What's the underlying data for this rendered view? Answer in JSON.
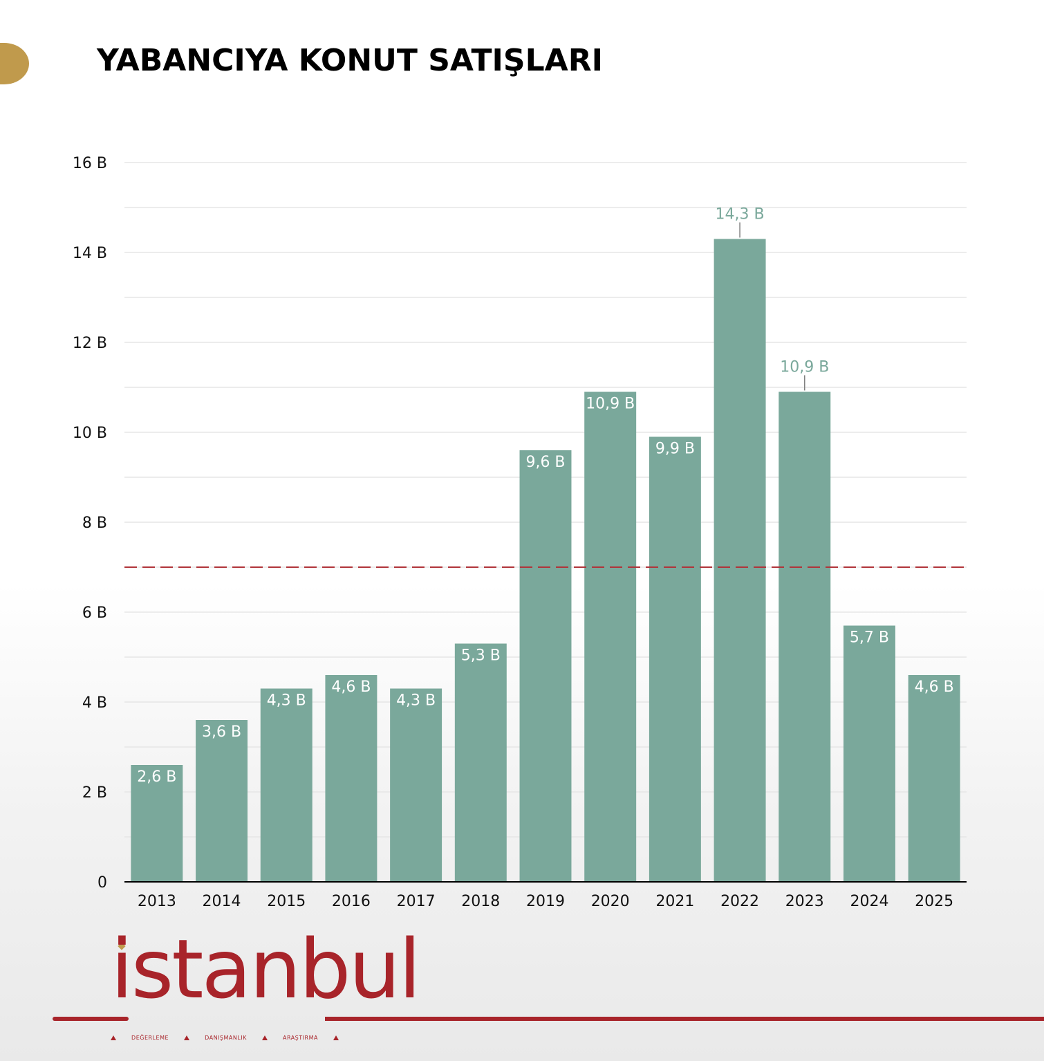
{
  "title": "YABANCIYA KONUT SATIŞLARI",
  "chart_data": {
    "type": "bar",
    "title": "YABANCIYA KONUT SATIŞLARI",
    "categories": [
      "2013",
      "2014",
      "2015",
      "2016",
      "2017",
      "2018",
      "2019",
      "2020",
      "2021",
      "2022",
      "2023",
      "2024",
      "2025"
    ],
    "values": [
      2.6,
      3.6,
      4.3,
      4.6,
      4.3,
      5.3,
      9.6,
      10.9,
      9.9,
      14.3,
      10.9,
      5.7,
      4.6
    ],
    "value_labels": [
      "2,6 B",
      "3,6 B",
      "4,3 B",
      "4,6 B",
      "4,3 B",
      "5,3 B",
      "9,6 B",
      "10,9 B",
      "9,9 B",
      "14,3 B",
      "10,9 B",
      "5,7 B",
      "4,6 B"
    ],
    "label_outside": [
      false,
      false,
      false,
      false,
      false,
      false,
      false,
      false,
      false,
      true,
      true,
      false,
      false
    ],
    "yticks": [
      0,
      2,
      4,
      6,
      8,
      10,
      12,
      14,
      16
    ],
    "ytick_labels": [
      "0",
      "2 B",
      "4 B",
      "6 B",
      "8 B",
      "10 B",
      "12 B",
      "14 B",
      "16 B"
    ],
    "ylim": [
      0,
      16
    ],
    "reference_line": 7,
    "grid": true,
    "colors": {
      "bar": "#7aa89b",
      "outside_label": "#7aa89b",
      "inside_label": "#ffffff",
      "reference": "#b0343a",
      "grid": "#e6e6e6",
      "axis": "#000000"
    }
  },
  "brand": {
    "logo_text": "istanbul",
    "taglines": [
      "DEĞERLEME",
      "DANIŞMANLIK",
      "ARAŞTIRMA"
    ],
    "colors": {
      "primary": "#a8242a",
      "accent": "#c09a4c"
    }
  }
}
